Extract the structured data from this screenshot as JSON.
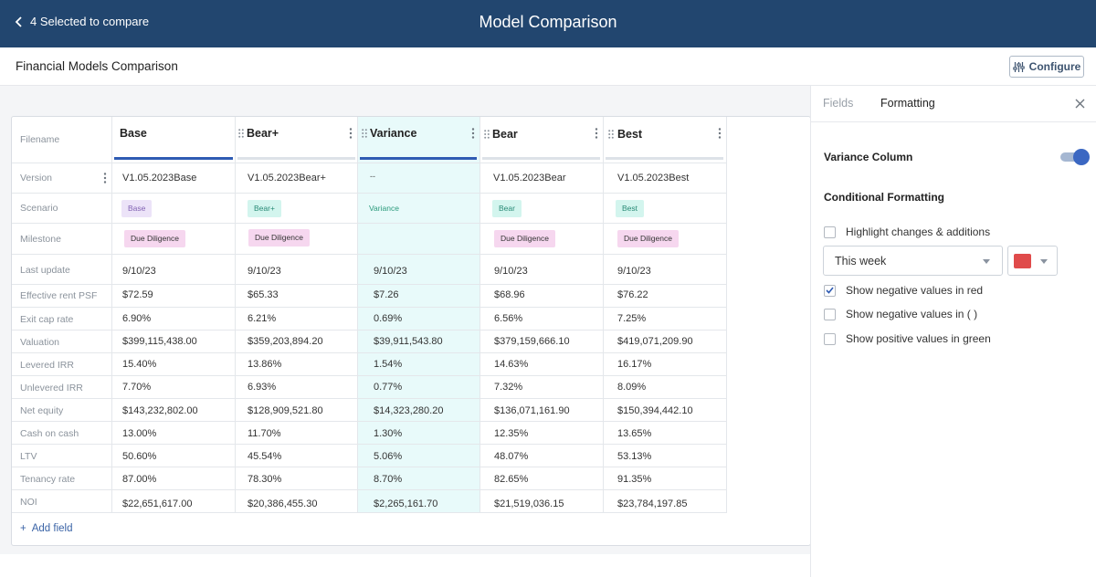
{
  "header": {
    "back_label": "4 Selected to compare",
    "title": "Model Comparison"
  },
  "subheader": {
    "title": "Financial Models Comparison",
    "configure_label": "Configure"
  },
  "table": {
    "filename_label": "Filename",
    "columns": [
      "Base",
      "Bear+",
      "Variance",
      "Bear",
      "Best"
    ],
    "row_labels": [
      "Version",
      "Scenario",
      "Milestone",
      "Last update",
      "Effective rent PSF",
      "Exit cap rate",
      "Valuation",
      "Levered IRR",
      "Unlevered IRR",
      "Net equity",
      "Cash on cash",
      "LTV",
      "Tenancy rate",
      "NOI"
    ],
    "versions": [
      "V1.05.2023Base",
      "V1.05.2023Bear+",
      "--",
      "V1.05.2023Bear",
      "V1.05.2023Best"
    ],
    "scenarios": [
      "Base",
      "Bear+",
      "Variance",
      "Bear",
      "Best"
    ],
    "milestones": [
      "Due Diligence",
      "Due Diligence",
      "",
      "Due Diligence",
      "Due Diligence"
    ],
    "data_rows": [
      [
        "9/10/23",
        "9/10/23",
        "9/10/23",
        "9/10/23",
        "9/10/23"
      ],
      [
        "$72.59",
        "$65.33",
        "$7.26",
        "$68.96",
        "$76.22"
      ],
      [
        "6.90%",
        "6.21%",
        "0.69%",
        "6.56%",
        "7.25%"
      ],
      [
        "$399,115,438.00",
        "$359,203,894.20",
        "$39,911,543.80",
        "$379,159,666.10",
        "$419,071,209.90"
      ],
      [
        "15.40%",
        "13.86%",
        "1.54%",
        "14.63%",
        "16.17%"
      ],
      [
        "7.70%",
        "6.93%",
        "0.77%",
        "7.32%",
        "8.09%"
      ],
      [
        "$143,232,802.00",
        "$128,909,521.80",
        "$14,323,280.20",
        "$136,071,161.90",
        "$150,394,442.10"
      ],
      [
        "13.00%",
        "11.70%",
        "1.30%",
        "12.35%",
        "13.65%"
      ],
      [
        "50.60%",
        "45.54%",
        "5.06%",
        "48.07%",
        "53.13%"
      ],
      [
        "87.00%",
        "78.30%",
        "8.70%",
        "82.65%",
        "91.35%"
      ],
      [
        "$22,651,617.00",
        "$20,386,455.30",
        "$2,265,161.70",
        "$21,519,036.15",
        "$23,784,197.85"
      ]
    ],
    "add_field_label": "Add field",
    "add_field_plus": "+"
  },
  "panel": {
    "tab_fields": "Fields",
    "tab_formatting": "Formatting",
    "variance_column_label": "Variance Column",
    "variance_column_enabled": true,
    "conditional_formatting_label": "Conditional Formatting",
    "highlight_label": "Highlight changes & additions",
    "highlight_checked": false,
    "period_value": "This week",
    "color_value": "#e04b4b",
    "negative_red_label": "Show negative values in red",
    "negative_red_checked": true,
    "negative_paren_label": "Show negative values in ( )",
    "negative_paren_checked": false,
    "positive_green_label": "Show positive values in green",
    "positive_green_checked": false
  },
  "colors": {
    "header_bg": "#22466f",
    "accent": "#3b67c2",
    "variance_bg": "#e8fafa"
  }
}
